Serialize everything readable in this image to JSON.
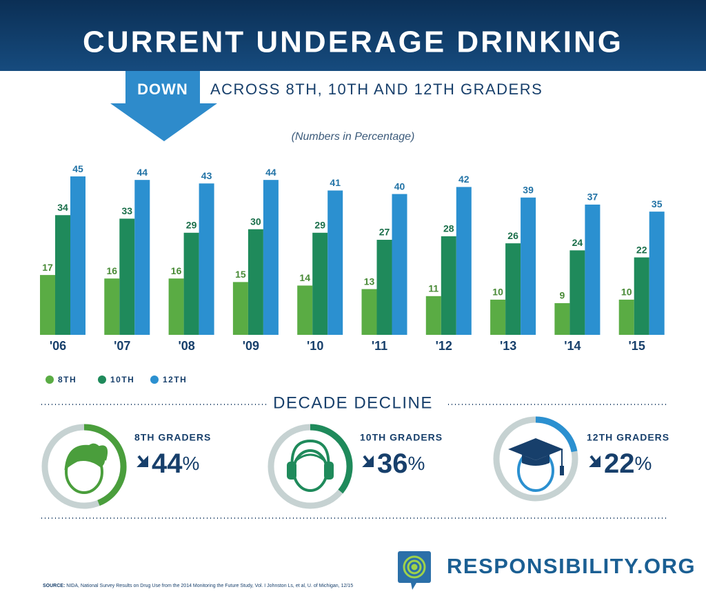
{
  "chart_data": {
    "type": "bar",
    "title": "CURRENT UNDERAGE DRINKING",
    "badge": "DOWN",
    "headline": "ACROSS 8TH, 10TH AND 12TH GRADERS",
    "subtitle": "(Numbers in Percentage)",
    "categories": [
      "'06",
      "'07",
      "'08",
      "'09",
      "'10",
      "'11",
      "'12",
      "'13",
      "'14",
      "'15"
    ],
    "series": [
      {
        "name": "8TH",
        "color": "#5aac44",
        "values": [
          17,
          16,
          16,
          15,
          14,
          13,
          11,
          10,
          9,
          10
        ]
      },
      {
        "name": "10TH",
        "color": "#1f8a5b",
        "values": [
          34,
          33,
          29,
          30,
          29,
          27,
          28,
          26,
          24,
          22
        ]
      },
      {
        "name": "12TH",
        "color": "#2b90d0",
        "values": [
          45,
          44,
          43,
          44,
          41,
          40,
          42,
          39,
          37,
          35
        ]
      }
    ]
  },
  "decade_decline": {
    "title": "DECADE DECLINE",
    "items": [
      {
        "label": "8TH GRADERS",
        "value": 44,
        "unit": "%",
        "color": "#4a9e3c"
      },
      {
        "label": "10TH GRADERS",
        "value": 36,
        "unit": "%",
        "color": "#1f8a5b"
      },
      {
        "label": "12TH GRADERS",
        "value": 22,
        "unit": "%",
        "color": "#2b90d0"
      }
    ]
  },
  "footer": {
    "brand": "RESPONSIBILITY.ORG",
    "source_label": "SOURCE:",
    "source": "NIDA, National Survey Results on Drug Use from the 2014 Monitoring the Future Study, Vol. I Johnston Ls, et al, U. of Michigan, 12/15"
  }
}
